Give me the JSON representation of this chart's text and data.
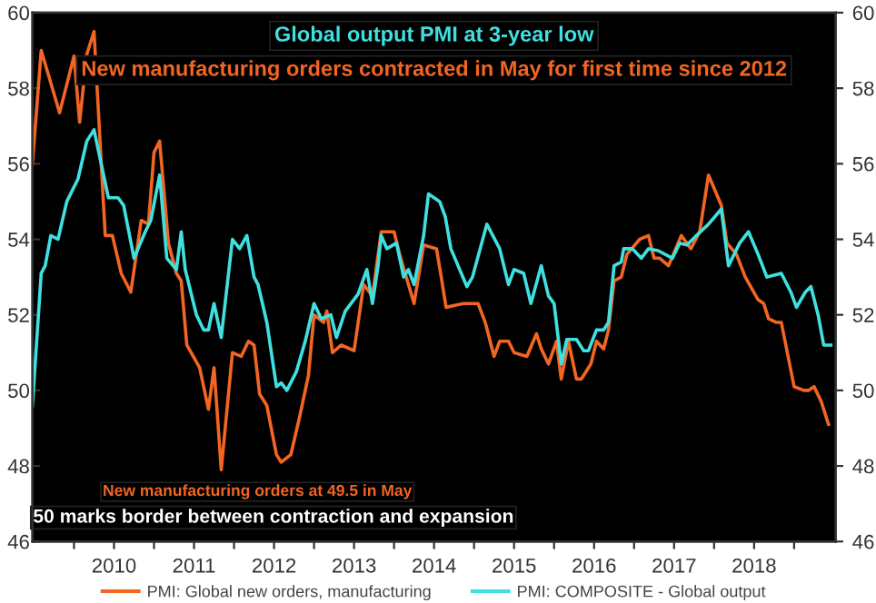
{
  "chart_data": {
    "type": "line",
    "title": "Global output PMI at 3-year low",
    "subtitle": "New manufacturing orders contracted in May for first time since 2012",
    "annotations": [
      "New manufacturing orders at 49.5 in May",
      "50 marks border between contraction and expansion"
    ],
    "series": [
      {
        "name": "PMI: Global new orders, manufacturing",
        "color": "#f26522",
        "x": [
          2009.48,
          2009.59,
          2009.82,
          2010.0,
          2010.07,
          2010.16,
          2010.25,
          2010.39,
          2010.48,
          2010.59,
          2010.71,
          2010.84,
          2010.93,
          2011.0,
          2011.07,
          2011.18,
          2011.28,
          2011.34,
          2011.41,
          2011.57,
          2011.68,
          2011.75,
          2011.84,
          2011.98,
          2012.09,
          2012.18,
          2012.25,
          2012.32,
          2012.41,
          2012.53,
          2012.59,
          2012.71,
          2012.82,
          2012.93,
          2013.0,
          2013.12,
          2013.16,
          2013.23,
          2013.34,
          2013.5,
          2013.62,
          2013.73,
          2013.84,
          2014.0,
          2014.07,
          2014.25,
          2014.37,
          2014.53,
          2014.59,
          2014.65,
          2014.87,
          2015.05,
          2015.14,
          2015.25,
          2015.32,
          2015.43,
          2015.5,
          2015.66,
          2015.78,
          2015.84,
          2015.93,
          2016.03,
          2016.09,
          2016.18,
          2016.28,
          2016.34,
          2016.46,
          2016.53,
          2016.62,
          2016.68,
          2016.75,
          2016.84,
          2016.91,
          2017.07,
          2017.18,
          2017.25,
          2017.32,
          2017.43,
          2017.59,
          2017.71,
          2017.82,
          2017.93,
          2018.09,
          2018.16,
          2018.28,
          2018.39,
          2018.55,
          2018.62,
          2018.68,
          2018.78,
          2018.84,
          2019.0,
          2019.12,
          2019.18,
          2019.25,
          2019.34,
          2019.43
        ],
        "values": [
          56.0,
          59.0,
          57.35,
          58.85,
          57.1,
          58.9,
          59.5,
          54.1,
          54.1,
          53.1,
          52.6,
          54.5,
          54.4,
          56.3,
          56.6,
          53.9,
          53.1,
          52.9,
          51.2,
          50.6,
          49.5,
          50.6,
          47.9,
          51.0,
          50.9,
          51.3,
          51.2,
          49.9,
          49.6,
          48.3,
          48.1,
          48.3,
          49.3,
          50.4,
          52.0,
          51.8,
          52.1,
          51.0,
          51.2,
          51.05,
          52.8,
          52.5,
          54.2,
          54.2,
          53.6,
          52.3,
          53.85,
          53.75,
          53.0,
          52.2,
          52.3,
          52.3,
          51.8,
          50.9,
          51.3,
          51.3,
          51.0,
          50.9,
          51.5,
          51.1,
          50.7,
          51.3,
          50.3,
          51.3,
          50.3,
          50.3,
          50.7,
          51.3,
          51.1,
          51.6,
          52.9,
          53.0,
          53.6,
          54.0,
          54.1,
          53.5,
          53.5,
          53.3,
          54.1,
          53.75,
          54.2,
          55.7,
          54.9,
          53.9,
          53.6,
          53.0,
          52.4,
          52.3,
          51.9,
          51.8,
          51.8,
          50.1,
          50.0,
          50.0,
          50.1,
          49.7,
          49.1
        ]
      },
      {
        "name": "PMI: COMPOSITE - Global output",
        "color": "#40e0e0",
        "x": [
          2009.48,
          2009.59,
          2009.64,
          2009.71,
          2009.8,
          2009.91,
          2010.05,
          2010.16,
          2010.25,
          2010.32,
          2010.43,
          2010.55,
          2010.62,
          2010.75,
          2010.89,
          2010.96,
          2011.07,
          2011.16,
          2011.28,
          2011.34,
          2011.39,
          2011.46,
          2011.53,
          2011.62,
          2011.68,
          2011.75,
          2011.84,
          2011.98,
          2012.07,
          2012.16,
          2012.25,
          2012.3,
          2012.41,
          2012.53,
          2012.59,
          2012.66,
          2012.78,
          2012.89,
          2013.0,
          2013.09,
          2013.21,
          2013.28,
          2013.39,
          2013.55,
          2013.66,
          2013.73,
          2013.8,
          2013.84,
          2013.91,
          2014.03,
          2014.12,
          2014.18,
          2014.25,
          2014.37,
          2014.43,
          2014.57,
          2014.64,
          2014.71,
          2014.8,
          2014.91,
          2014.98,
          2015.16,
          2015.32,
          2015.43,
          2015.5,
          2015.62,
          2015.71,
          2015.84,
          2015.93,
          2016.0,
          2016.09,
          2016.16,
          2016.28,
          2016.37,
          2016.43,
          2016.53,
          2016.62,
          2016.68,
          2016.75,
          2016.84,
          2016.87,
          2016.98,
          2017.09,
          2017.18,
          2017.3,
          2017.48,
          2017.57,
          2017.66,
          2017.78,
          2017.93,
          2018.09,
          2018.18,
          2018.32,
          2018.43,
          2018.55,
          2018.66,
          2018.84,
          2018.96,
          2019.03,
          2019.14,
          2019.21,
          2019.3,
          2019.37,
          2019.46
        ],
        "values": [
          49.6,
          53.1,
          53.3,
          54.1,
          54.0,
          55.0,
          55.6,
          56.6,
          56.9,
          56.2,
          55.1,
          55.1,
          54.9,
          53.5,
          54.2,
          54.5,
          55.7,
          53.5,
          53.2,
          54.2,
          53.2,
          52.6,
          52.0,
          51.6,
          51.6,
          52.3,
          51.4,
          54.0,
          53.75,
          54.1,
          53.0,
          52.8,
          51.8,
          50.1,
          50.2,
          50.0,
          50.5,
          51.3,
          52.3,
          51.9,
          52.0,
          51.4,
          52.1,
          52.55,
          53.2,
          52.3,
          53.3,
          54.1,
          53.75,
          53.9,
          53.0,
          53.2,
          52.8,
          54.1,
          55.2,
          55.0,
          54.6,
          53.75,
          53.3,
          52.75,
          53.0,
          54.4,
          53.75,
          52.8,
          53.2,
          53.1,
          52.3,
          53.3,
          52.5,
          52.3,
          50.7,
          51.35,
          51.35,
          51.05,
          51.05,
          51.6,
          51.6,
          51.8,
          53.3,
          53.4,
          53.75,
          53.75,
          53.5,
          53.75,
          53.7,
          53.5,
          53.9,
          53.85,
          54.1,
          54.4,
          54.8,
          53.3,
          53.9,
          54.2,
          53.6,
          53.0,
          53.1,
          52.6,
          52.2,
          52.6,
          52.75,
          52.0,
          51.2,
          51.2
        ]
      }
    ],
    "xlim": [
      2009.48,
      2019.52
    ],
    "xticks": [
      {
        "value": 2010,
        "label": null
      },
      {
        "value": 2010.5,
        "label": "2010"
      },
      {
        "value": 2011,
        "label": null
      },
      {
        "value": 2011.5,
        "label": "2011"
      },
      {
        "value": 2012,
        "label": null
      },
      {
        "value": 2012.5,
        "label": "2012"
      },
      {
        "value": 2013,
        "label": null
      },
      {
        "value": 2013.5,
        "label": "2013"
      },
      {
        "value": 2014,
        "label": null
      },
      {
        "value": 2014.5,
        "label": "2014"
      },
      {
        "value": 2015,
        "label": null
      },
      {
        "value": 2015.5,
        "label": "2015"
      },
      {
        "value": 2016,
        "label": null
      },
      {
        "value": 2016.5,
        "label": "2016"
      },
      {
        "value": 2017,
        "label": null
      },
      {
        "value": 2017.5,
        "label": "2017"
      },
      {
        "value": 2018,
        "label": null
      },
      {
        "value": 2018.5,
        "label": "2018"
      },
      {
        "value": 2019,
        "label": null
      }
    ],
    "ylim": [
      46,
      60
    ],
    "yticks": [
      46,
      48,
      50,
      52,
      54,
      56,
      58,
      60
    ],
    "y2lim": [
      46,
      60
    ],
    "y2ticks": [
      46,
      48,
      50,
      52,
      54,
      56,
      58,
      60
    ],
    "grid": false,
    "legend": "bottom",
    "marker": "none",
    "line_style": "solid"
  }
}
